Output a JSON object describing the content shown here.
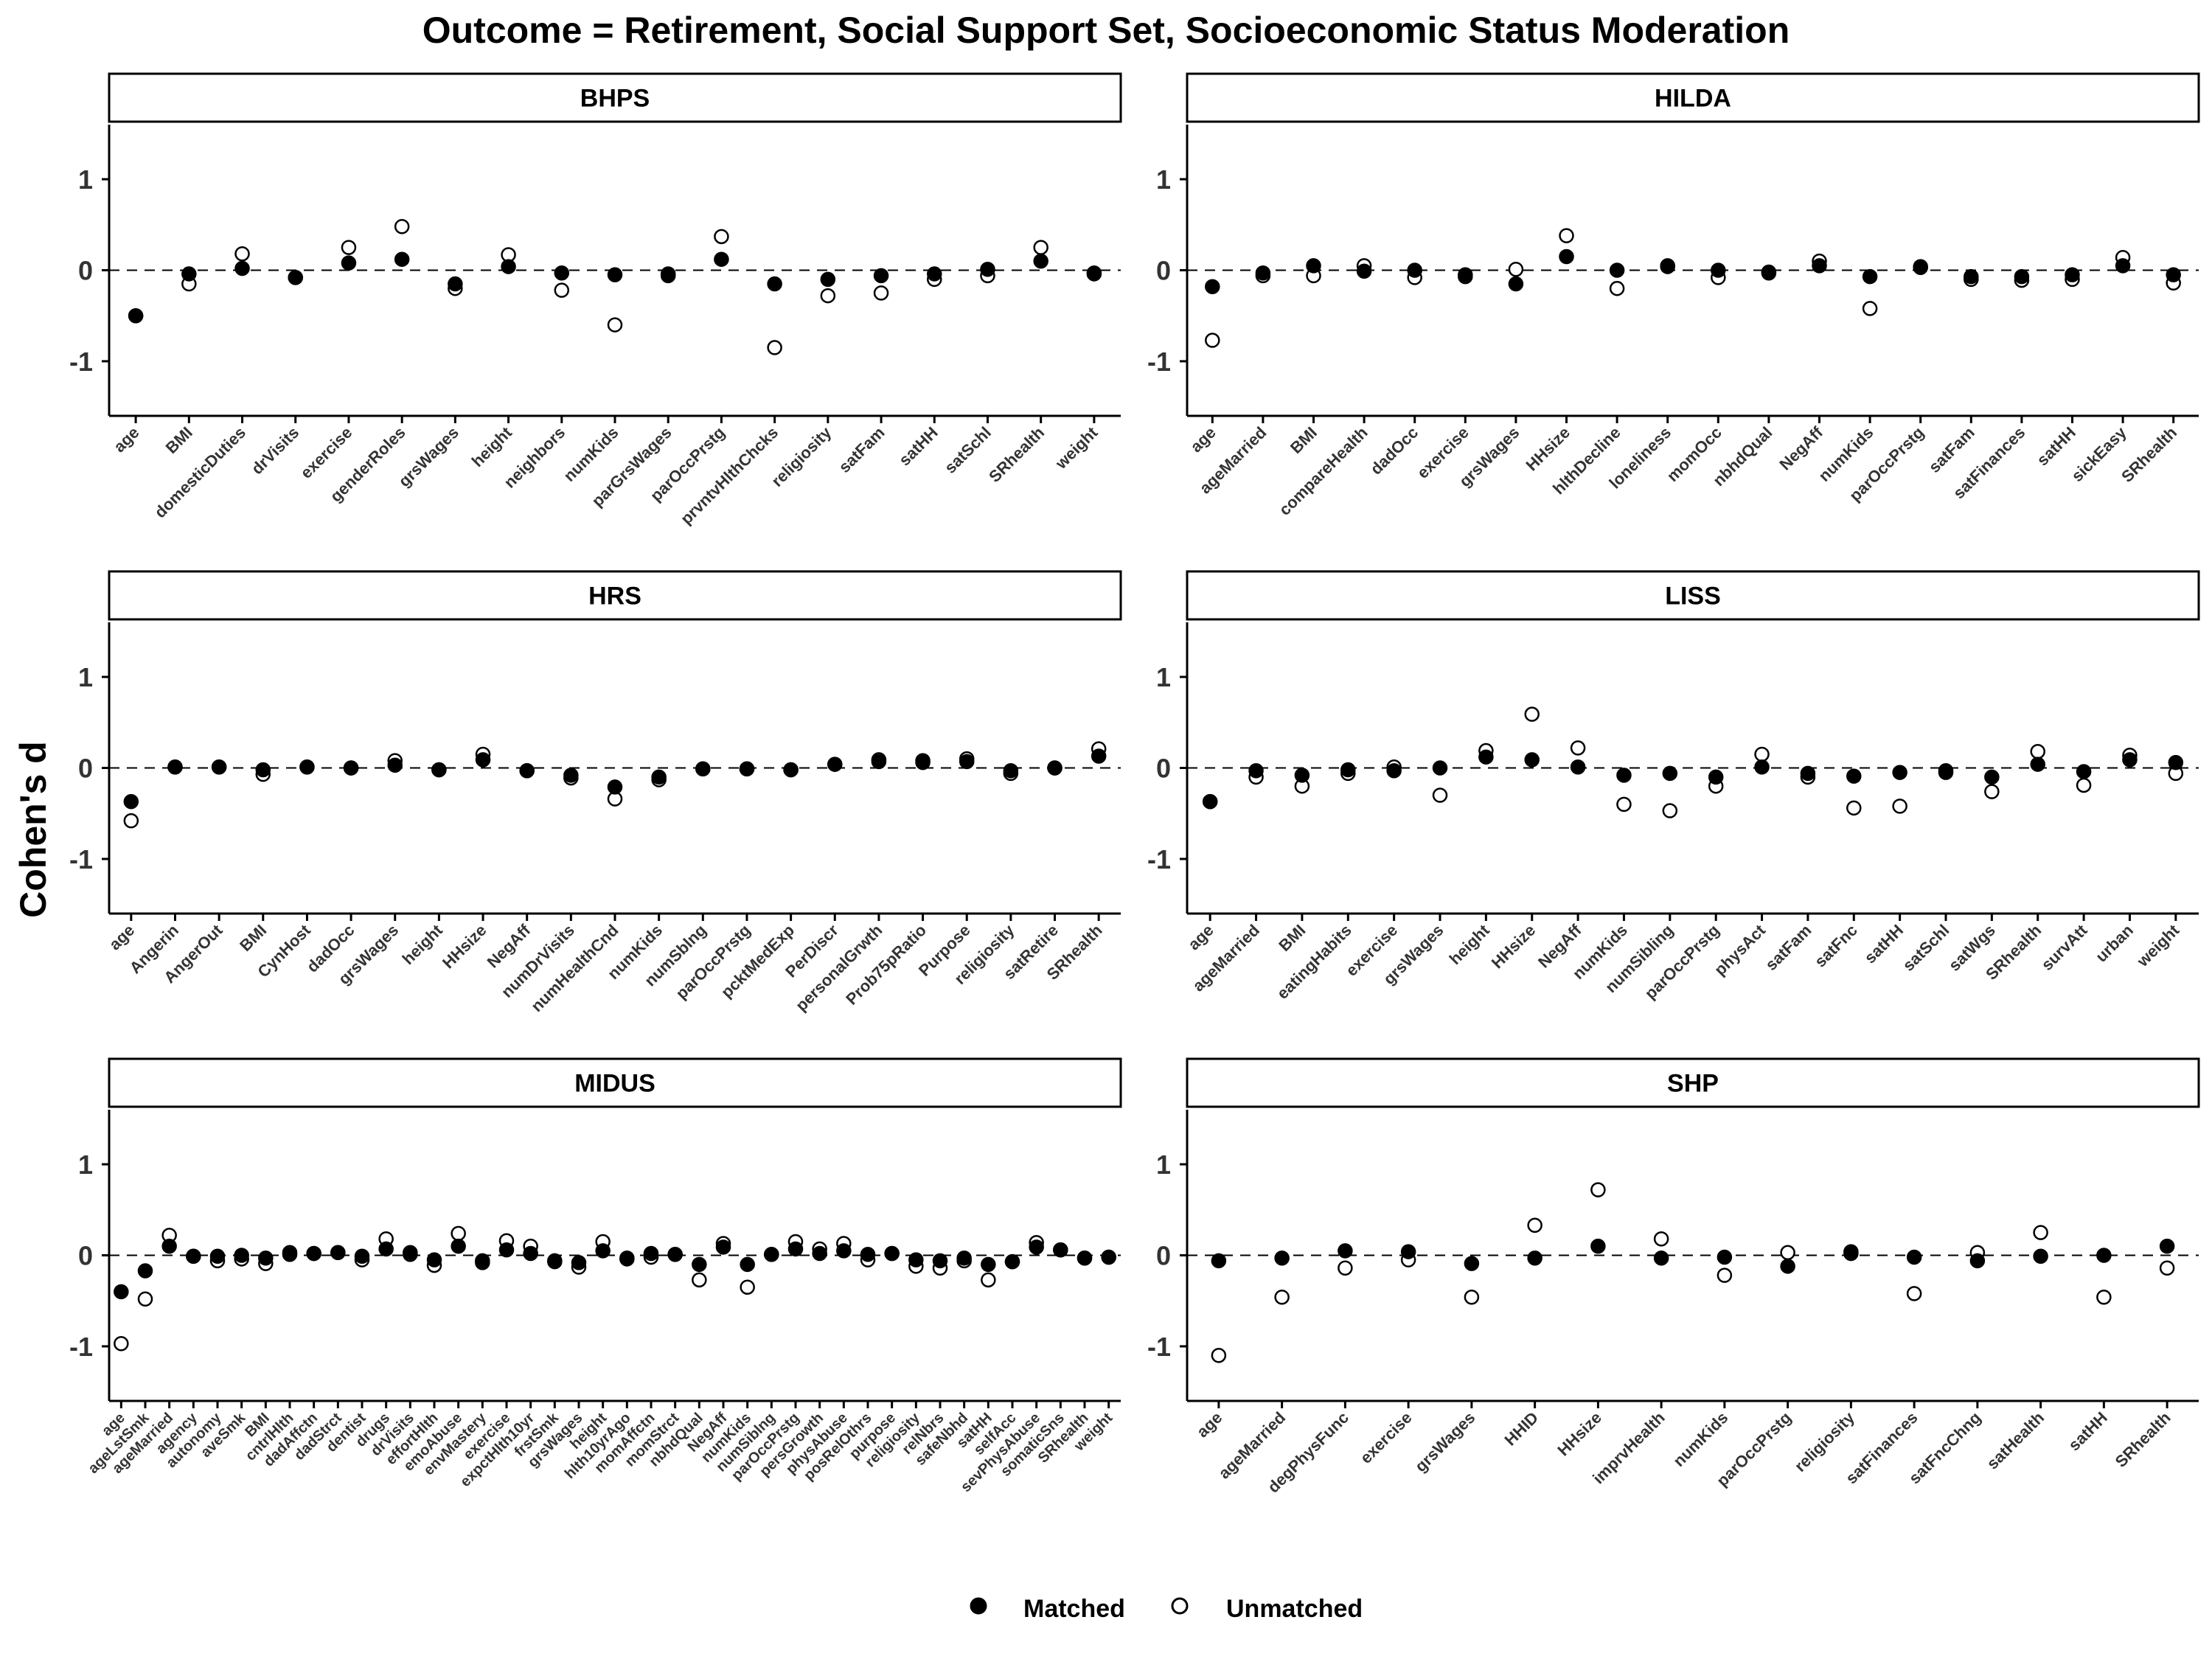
{
  "chart_data": {
    "type": "scatter",
    "title": "Outcome = Retirement, Social Support Set, Socioeconomic Status Moderation",
    "ylabel": "Cohen's d",
    "ylim": [
      -1.6,
      1.6
    ],
    "yticks": [
      1,
      0,
      -1
    ],
    "reference_line": 0,
    "legend": {
      "position": "bottom",
      "items": [
        "Matched",
        "Unmatched"
      ]
    },
    "series_names": [
      "Matched",
      "Unmatched"
    ],
    "panels": [
      {
        "name": "BHPS",
        "categories": [
          "age",
          "BMI",
          "domesticDuties",
          "drVisits",
          "exercise",
          "genderRoles",
          "grsWages",
          "height",
          "neighbors",
          "numKids",
          "parGrsWages",
          "parOccPrstg",
          "prvntvHlthChcks",
          "religiosity",
          "satFam",
          "satHH",
          "satSchl",
          "SRhealth",
          "weight"
        ],
        "matched": [
          -0.5,
          -0.04,
          0.02,
          -0.08,
          0.08,
          0.12,
          -0.15,
          0.04,
          -0.03,
          -0.05,
          -0.04,
          0.12,
          -0.15,
          -0.1,
          -0.06,
          -0.04,
          0.01,
          0.1,
          -0.03
        ],
        "unmatched": [
          -0.5,
          -0.15,
          0.18,
          -0.08,
          0.25,
          0.48,
          -0.2,
          0.17,
          -0.22,
          -0.6,
          -0.06,
          0.37,
          -0.85,
          -0.28,
          -0.25,
          -0.1,
          -0.06,
          0.25,
          -0.04
        ]
      },
      {
        "name": "HILDA",
        "categories": [
          "age",
          "ageMarried",
          "BMI",
          "compareHealth",
          "dadOcc",
          "exercise",
          "grsWages",
          "HHsize",
          "hlthDecline",
          "loneliness",
          "momOcc",
          "nbhdQual",
          "NegAff",
          "numKids",
          "parOccPrstg",
          "satFam",
          "satFinances",
          "satHH",
          "sickEasy",
          "SRhealth"
        ],
        "matched": [
          -0.18,
          -0.03,
          0.05,
          -0.01,
          0.0,
          -0.05,
          -0.15,
          0.15,
          0.0,
          0.05,
          0.0,
          -0.02,
          0.05,
          -0.07,
          0.03,
          -0.07,
          -0.07,
          -0.05,
          0.05,
          -0.05
        ],
        "unmatched": [
          -0.77,
          -0.06,
          -0.06,
          0.05,
          -0.08,
          -0.07,
          0.01,
          0.38,
          -0.2,
          0.04,
          -0.08,
          -0.03,
          0.1,
          -0.42,
          0.04,
          -0.1,
          -0.11,
          -0.1,
          0.14,
          -0.14
        ]
      },
      {
        "name": "HRS",
        "categories": [
          "age",
          "Angerin",
          "AngerOut",
          "BMI",
          "CynHost",
          "dadOcc",
          "grsWages",
          "height",
          "HHsize",
          "NegAff",
          "numDrVisits",
          "numHealthCnd",
          "numKids",
          "numSblng",
          "parOccPrstg",
          "pcktMedExp",
          "PerDiscr",
          "personalGrwth",
          "Prob75pRatio",
          "Purpose",
          "religiosity",
          "satRetire",
          "SRhealth"
        ],
        "matched": [
          -0.37,
          0.01,
          0.01,
          -0.02,
          0.01,
          0.0,
          0.03,
          -0.02,
          0.09,
          -0.03,
          -0.08,
          -0.21,
          -0.1,
          -0.01,
          -0.01,
          -0.02,
          0.04,
          0.07,
          0.06,
          0.07,
          -0.03,
          0.0,
          0.13
        ],
        "unmatched": [
          -0.58,
          0.01,
          0.01,
          -0.07,
          0.01,
          0.0,
          0.08,
          -0.02,
          0.15,
          -0.03,
          -0.11,
          -0.34,
          -0.13,
          -0.01,
          -0.01,
          -0.02,
          0.04,
          0.09,
          0.08,
          0.1,
          -0.06,
          0.0,
          0.21
        ]
      },
      {
        "name": "LISS",
        "categories": [
          "age",
          "ageMarried",
          "BMI",
          "eatingHabits",
          "exercise",
          "grsWages",
          "height",
          "HHsize",
          "NegAff",
          "numKids",
          "numSibling",
          "parOccPrstg",
          "physAct",
          "satFam",
          "satFnc",
          "satHH",
          "satSchl",
          "satWgs",
          "SRhealth",
          "survAtt",
          "urban",
          "weight"
        ],
        "matched": [
          -0.37,
          -0.03,
          -0.08,
          -0.02,
          -0.03,
          0.0,
          0.12,
          0.09,
          0.01,
          -0.08,
          -0.06,
          -0.1,
          0.01,
          -0.06,
          -0.09,
          -0.05,
          -0.03,
          -0.1,
          0.04,
          -0.04,
          0.09,
          0.06
        ],
        "unmatched": [
          -0.37,
          -0.1,
          -0.2,
          -0.06,
          0.01,
          -0.3,
          0.19,
          0.59,
          0.22,
          -0.4,
          -0.47,
          -0.2,
          0.15,
          -0.1,
          -0.44,
          -0.42,
          -0.05,
          -0.26,
          0.18,
          -0.19,
          0.14,
          -0.06
        ]
      },
      {
        "name": "MIDUS",
        "categories": [
          "age",
          "ageLstSmk",
          "ageMarried",
          "agency",
          "autonomy",
          "aveSmk",
          "BMI",
          "cntrlHlth",
          "dadAffctn",
          "dadStrct",
          "dentist",
          "drugs",
          "drVisits",
          "effortHlth",
          "emoAbuse",
          "envMastery",
          "exercise",
          "expctHlth10yr",
          "frstSmk",
          "grsWages",
          "height",
          "hlth10yrAgo",
          "momAffctn",
          "momStrct",
          "nbhdQual",
          "NegAff",
          "numKids",
          "numSiblng",
          "parOccPrstg",
          "persGrowth",
          "physAbuse",
          "posRelOthrs",
          "purpose",
          "religiosity",
          "relNbrs",
          "safeNbhd",
          "satHH",
          "selfAcc",
          "sevPhysAbuse",
          "somaticSns",
          "SRhealth",
          "weight"
        ],
        "matched": [
          -0.4,
          -0.17,
          0.1,
          -0.01,
          -0.01,
          0.0,
          -0.03,
          0.01,
          0.02,
          0.03,
          -0.01,
          0.07,
          0.03,
          -0.05,
          0.1,
          -0.06,
          0.06,
          0.02,
          -0.06,
          -0.08,
          0.05,
          -0.03,
          0.02,
          0.01,
          -0.1,
          0.09,
          -0.1,
          0.01,
          0.07,
          0.02,
          0.05,
          0.01,
          0.02,
          -0.05,
          -0.06,
          -0.03,
          -0.1,
          -0.07,
          0.09,
          0.06,
          -0.03,
          -0.02
        ],
        "unmatched": [
          -0.97,
          -0.48,
          0.22,
          -0.01,
          -0.06,
          -0.04,
          -0.09,
          0.03,
          0.02,
          0.03,
          -0.05,
          0.18,
          0.01,
          -0.11,
          0.24,
          -0.08,
          0.16,
          0.1,
          -0.07,
          -0.13,
          0.15,
          -0.04,
          -0.02,
          0.01,
          -0.27,
          0.13,
          -0.35,
          0.01,
          0.15,
          0.07,
          0.13,
          -0.05,
          0.02,
          -0.12,
          -0.14,
          -0.06,
          -0.27,
          -0.07,
          0.14,
          0.06,
          -0.03,
          -0.02
        ]
      },
      {
        "name": "SHP",
        "categories": [
          "age",
          "ageMarried",
          "degPhysFunc",
          "exercise",
          "grsWages",
          "HHID",
          "HHsize",
          "imprvHealth",
          "numKids",
          "parOccPrstg",
          "religiosity",
          "satFinances",
          "satFncChng",
          "satHealth",
          "satHH",
          "SRhealth"
        ],
        "matched": [
          -0.06,
          -0.03,
          0.05,
          0.04,
          -0.09,
          -0.03,
          0.1,
          -0.03,
          -0.02,
          -0.12,
          0.04,
          -0.02,
          -0.06,
          -0.01,
          0.0,
          0.1
        ],
        "unmatched": [
          -1.1,
          -0.46,
          -0.14,
          -0.05,
          -0.46,
          0.33,
          0.72,
          0.18,
          -0.22,
          0.03,
          0.02,
          -0.42,
          0.03,
          0.25,
          -0.46,
          -0.14
        ]
      }
    ]
  }
}
